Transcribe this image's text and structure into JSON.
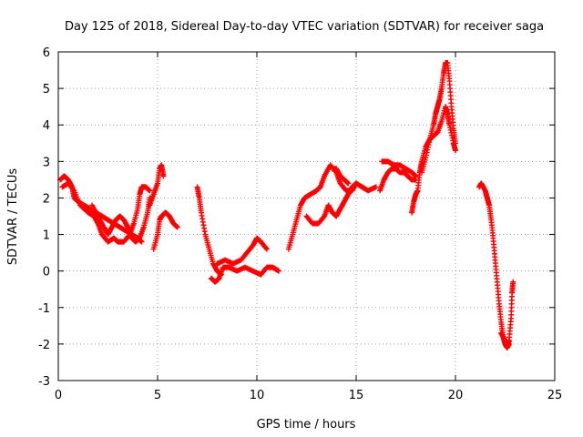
{
  "chart_data": {
    "type": "scatter",
    "title": "Day 125 of 2018, Sidereal Day-to-day VTEC variation (SDTVAR) for receiver saga",
    "xlabel": "GPS time / hours",
    "ylabel": "SDTVAR / TECUs",
    "xlim": [
      0,
      25
    ],
    "ylim": [
      -3,
      6
    ],
    "xticks": [
      0,
      5,
      10,
      15,
      20,
      25
    ],
    "yticks": [
      -3,
      -2,
      -1,
      0,
      1,
      2,
      3,
      4,
      5,
      6
    ],
    "grid": true,
    "marker": "+",
    "color": "#ff0000",
    "series": [
      {
        "name": "SDTVAR",
        "segments": [
          [
            [
              0.1,
              2.5
            ],
            [
              0.3,
              2.6
            ],
            [
              0.5,
              2.5
            ],
            [
              0.7,
              2.3
            ],
            [
              0.8,
              2.0
            ],
            [
              1.0,
              1.9
            ],
            [
              1.3,
              1.8
            ],
            [
              1.6,
              1.7
            ],
            [
              1.9,
              1.6
            ],
            [
              2.2,
              1.5
            ],
            [
              2.5,
              1.4
            ],
            [
              2.8,
              1.3
            ],
            [
              3.1,
              1.2
            ],
            [
              3.4,
              1.1
            ],
            [
              3.7,
              1.0
            ],
            [
              4.0,
              0.9
            ],
            [
              4.2,
              0.8
            ]
          ],
          [
            [
              0.2,
              2.3
            ],
            [
              0.5,
              2.4
            ],
            [
              0.8,
              2.2
            ],
            [
              1.1,
              1.8
            ],
            [
              1.5,
              1.6
            ],
            [
              1.8,
              1.5
            ],
            [
              2.0,
              1.3
            ],
            [
              2.2,
              1.0
            ],
            [
              2.5,
              0.8
            ],
            [
              2.8,
              0.9
            ],
            [
              3.0,
              0.8
            ],
            [
              3.3,
              0.8
            ],
            [
              3.6,
              1.0
            ],
            [
              3.8,
              1.3
            ],
            [
              4.0,
              1.7
            ],
            [
              4.1,
              2.1
            ],
            [
              4.2,
              2.3
            ],
            [
              4.4,
              2.3
            ],
            [
              4.6,
              2.2
            ]
          ],
          [
            [
              1.7,
              1.8
            ],
            [
              2.0,
              1.5
            ],
            [
              2.3,
              1.2
            ],
            [
              2.5,
              1.0
            ],
            [
              2.7,
              1.2
            ],
            [
              2.9,
              1.4
            ],
            [
              3.1,
              1.5
            ],
            [
              3.3,
              1.4
            ],
            [
              3.5,
              1.2
            ],
            [
              3.7,
              0.9
            ],
            [
              3.9,
              0.8
            ],
            [
              4.1,
              0.9
            ],
            [
              4.3,
              1.2
            ],
            [
              4.5,
              1.6
            ],
            [
              4.6,
              2.0
            ]
          ],
          [
            [
              4.8,
              0.6
            ],
            [
              5.0,
              1.0
            ],
            [
              5.1,
              1.4
            ],
            [
              5.2,
              1.5
            ],
            [
              5.4,
              1.6
            ],
            [
              5.6,
              1.5
            ],
            [
              5.8,
              1.3
            ],
            [
              6.0,
              1.2
            ]
          ],
          [
            [
              4.6,
              1.8
            ],
            [
              4.8,
              2.1
            ],
            [
              5.0,
              2.4
            ],
            [
              5.1,
              2.8
            ],
            [
              5.2,
              2.9
            ],
            [
              5.3,
              2.6
            ]
          ],
          [
            [
              7.0,
              2.3
            ],
            [
              7.1,
              2.0
            ],
            [
              7.2,
              1.6
            ],
            [
              7.4,
              1.0
            ],
            [
              7.6,
              0.6
            ],
            [
              7.8,
              0.2
            ],
            [
              8.0,
              0.0
            ],
            [
              8.2,
              -0.1
            ]
          ],
          [
            [
              7.7,
              -0.2
            ],
            [
              7.9,
              -0.3
            ],
            [
              8.1,
              -0.2
            ],
            [
              8.3,
              0.1
            ],
            [
              8.6,
              0.1
            ],
            [
              9.0,
              0.0
            ],
            [
              9.4,
              0.1
            ],
            [
              9.8,
              0.0
            ],
            [
              10.2,
              -0.1
            ],
            [
              10.5,
              0.1
            ],
            [
              10.8,
              0.1
            ],
            [
              11.1,
              0.0
            ]
          ],
          [
            [
              8.0,
              0.2
            ],
            [
              8.4,
              0.3
            ],
            [
              8.8,
              0.2
            ],
            [
              9.2,
              0.3
            ],
            [
              9.5,
              0.5
            ],
            [
              9.8,
              0.7
            ],
            [
              10.0,
              0.9
            ],
            [
              10.2,
              0.8
            ],
            [
              10.5,
              0.6
            ]
          ],
          [
            [
              11.6,
              0.6
            ],
            [
              11.8,
              1.0
            ],
            [
              12.0,
              1.4
            ],
            [
              12.2,
              1.8
            ],
            [
              12.4,
              2.0
            ],
            [
              12.7,
              2.1
            ],
            [
              13.0,
              2.2
            ],
            [
              13.2,
              2.3
            ],
            [
              13.4,
              2.6
            ],
            [
              13.7,
              2.9
            ],
            [
              14.0,
              2.7
            ],
            [
              14.2,
              2.4
            ],
            [
              14.5,
              2.2
            ],
            [
              14.8,
              2.2
            ],
            [
              15.0,
              2.4
            ],
            [
              15.3,
              2.3
            ],
            [
              15.6,
              2.2
            ],
            [
              16.0,
              2.3
            ]
          ],
          [
            [
              12.5,
              1.5
            ],
            [
              12.8,
              1.3
            ],
            [
              13.1,
              1.3
            ],
            [
              13.4,
              1.5
            ],
            [
              13.6,
              1.8
            ],
            [
              13.8,
              1.6
            ],
            [
              14.0,
              1.5
            ],
            [
              14.2,
              1.7
            ],
            [
              14.4,
              1.9
            ],
            [
              14.6,
              2.1
            ],
            [
              14.8,
              2.3
            ],
            [
              15.0,
              2.4
            ]
          ],
          [
            [
              13.8,
              2.8
            ],
            [
              14.0,
              2.8
            ],
            [
              14.2,
              2.6
            ],
            [
              14.4,
              2.5
            ],
            [
              14.6,
              2.4
            ]
          ],
          [
            [
              16.2,
              2.2
            ],
            [
              16.4,
              2.5
            ],
            [
              16.6,
              2.7
            ],
            [
              16.8,
              2.8
            ],
            [
              17.0,
              2.8
            ],
            [
              17.2,
              2.7
            ],
            [
              17.4,
              2.7
            ],
            [
              17.6,
              2.6
            ],
            [
              17.8,
              2.5
            ],
            [
              18.0,
              2.5
            ]
          ],
          [
            [
              16.3,
              3.0
            ],
            [
              16.6,
              3.0
            ],
            [
              16.9,
              2.9
            ],
            [
              17.2,
              2.9
            ],
            [
              17.5,
              2.8
            ],
            [
              17.8,
              2.7
            ],
            [
              18.0,
              2.6
            ]
          ],
          [
            [
              17.8,
              1.6
            ],
            [
              17.9,
              1.9
            ],
            [
              18.0,
              2.1
            ],
            [
              18.1,
              2.2
            ],
            [
              18.2,
              2.7
            ],
            [
              18.3,
              3.0
            ],
            [
              18.5,
              3.4
            ],
            [
              18.7,
              3.6
            ],
            [
              18.9,
              3.7
            ],
            [
              19.1,
              3.8
            ],
            [
              19.3,
              4.1
            ],
            [
              19.5,
              4.5
            ],
            [
              19.6,
              4.3
            ],
            [
              19.7,
              4.0
            ],
            [
              19.9,
              3.5
            ],
            [
              20.0,
              3.3
            ]
          ],
          [
            [
              18.3,
              2.7
            ],
            [
              18.5,
              3.1
            ],
            [
              18.7,
              3.6
            ],
            [
              18.9,
              4.0
            ],
            [
              19.0,
              4.3
            ],
            [
              19.1,
              4.5
            ],
            [
              19.2,
              4.7
            ],
            [
              19.3,
              5.0
            ],
            [
              19.4,
              5.4
            ],
            [
              19.5,
              5.7
            ],
            [
              19.6,
              5.7
            ],
            [
              19.7,
              5.2
            ],
            [
              19.8,
              4.5
            ],
            [
              19.9,
              3.9
            ],
            [
              20.0,
              3.5
            ]
          ],
          [
            [
              21.2,
              2.3
            ],
            [
              21.3,
              2.4
            ],
            [
              21.5,
              2.2
            ],
            [
              21.6,
              2.0
            ],
            [
              21.7,
              1.8
            ],
            [
              21.8,
              1.4
            ],
            [
              21.9,
              0.9
            ],
            [
              22.0,
              0.3
            ],
            [
              22.1,
              -0.3
            ],
            [
              22.2,
              -0.9
            ],
            [
              22.3,
              -1.4
            ],
            [
              22.4,
              -1.8
            ],
            [
              22.5,
              -2.0
            ],
            [
              22.6,
              -2.1
            ],
            [
              22.7,
              -1.9
            ],
            [
              22.8,
              -1.3
            ],
            [
              22.85,
              -0.6
            ],
            [
              22.9,
              -0.3
            ]
          ],
          [
            [
              22.3,
              -1.7
            ],
            [
              22.5,
              -1.9
            ],
            [
              22.6,
              -2.1
            ],
            [
              22.7,
              -2.0
            ]
          ]
        ]
      }
    ]
  }
}
